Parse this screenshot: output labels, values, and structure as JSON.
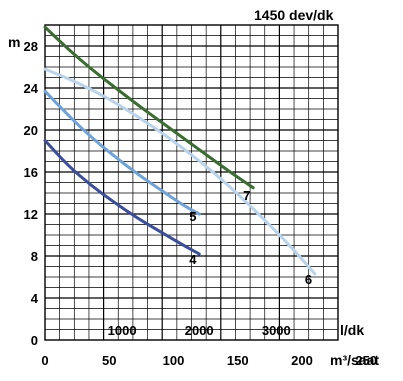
{
  "chart_data": {
    "type": "line",
    "title": "1450 dev/dk",
    "ylabel": "m",
    "xlabel_primary": "l/dk",
    "xlabel_secondary": "m³/saat",
    "ylim": [
      0,
      30
    ],
    "xlim_lpm": [
      0,
      3800
    ],
    "yticks": [
      "0",
      "4",
      "8",
      "12",
      "16",
      "20",
      "24",
      "28"
    ],
    "xticks_lpm": [
      "1000",
      "2000",
      "3000"
    ],
    "xticks_m3h": [
      "0",
      "50",
      "100",
      "150",
      "200",
      "250"
    ],
    "grid": true,
    "series": [
      {
        "name": "4",
        "color": "#3a4e9a",
        "x": [
          0,
          300,
          600,
          900,
          1200,
          1500,
          1800,
          2000
        ],
        "y": [
          19,
          16.6,
          14.7,
          13.1,
          11.6,
          10.3,
          9.0,
          8.2
        ]
      },
      {
        "name": "5",
        "color": "#6fa3d8",
        "x": [
          0,
          300,
          600,
          900,
          1200,
          1500,
          1800,
          2000
        ],
        "y": [
          23.7,
          21.4,
          19.3,
          17.5,
          15.8,
          14.3,
          12.8,
          12.0
        ]
      },
      {
        "name": "6",
        "color": "#b9d3ea",
        "x": [
          0,
          400,
          800,
          1200,
          1600,
          2000,
          2400,
          2800,
          3200,
          3500
        ],
        "y": [
          25.8,
          24.6,
          23.1,
          21.3,
          19.3,
          17.1,
          14.6,
          11.8,
          8.8,
          6.3
        ]
      },
      {
        "name": "7",
        "color": "#3a6e30",
        "x": [
          0,
          300,
          600,
          900,
          1200,
          1500,
          1800,
          2100,
          2400,
          2700
        ],
        "y": [
          29.8,
          27.7,
          25.8,
          24.1,
          22.4,
          20.8,
          19.2,
          17.6,
          16.0,
          14.5
        ]
      }
    ]
  }
}
